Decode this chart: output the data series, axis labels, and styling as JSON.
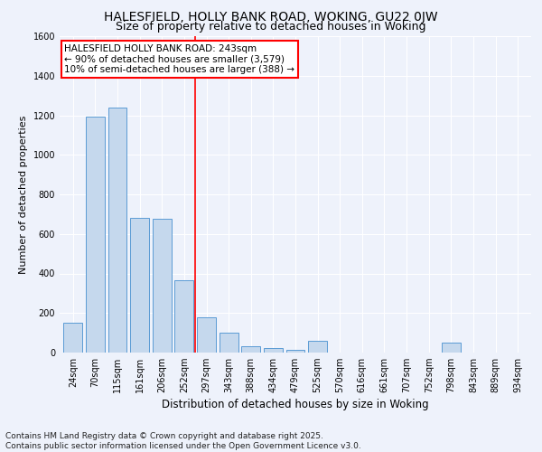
{
  "title1": "HALESFIELD, HOLLY BANK ROAD, WOKING, GU22 0JW",
  "title2": "Size of property relative to detached houses in Woking",
  "xlabel": "Distribution of detached houses by size in Woking",
  "ylabel": "Number of detached properties",
  "categories": [
    "24sqm",
    "70sqm",
    "115sqm",
    "161sqm",
    "206sqm",
    "252sqm",
    "297sqm",
    "343sqm",
    "388sqm",
    "434sqm",
    "479sqm",
    "525sqm",
    "570sqm",
    "616sqm",
    "661sqm",
    "707sqm",
    "752sqm",
    "798sqm",
    "843sqm",
    "889sqm",
    "934sqm"
  ],
  "values": [
    150,
    1195,
    1240,
    680,
    675,
    365,
    180,
    100,
    30,
    25,
    15,
    60,
    0,
    0,
    0,
    0,
    0,
    50,
    0,
    0,
    0
  ],
  "bar_color": "#c5d8ed",
  "bar_edge_color": "#5b9bd5",
  "vline_x_index": 5.5,
  "vline_color": "red",
  "annotation_text": "HALESFIELD HOLLY BANK ROAD: 243sqm\n← 90% of detached houses are smaller (3,579)\n10% of semi-detached houses are larger (388) →",
  "annotation_box_color": "white",
  "annotation_box_edge": "red",
  "ylim": [
    0,
    1600
  ],
  "yticks": [
    0,
    200,
    400,
    600,
    800,
    1000,
    1200,
    1400,
    1600
  ],
  "footnote": "Contains HM Land Registry data © Crown copyright and database right 2025.\nContains public sector information licensed under the Open Government Licence v3.0.",
  "bg_color": "#eef2fb",
  "grid_color": "white",
  "title1_fontsize": 10,
  "title2_fontsize": 9,
  "xlabel_fontsize": 8.5,
  "ylabel_fontsize": 8,
  "tick_fontsize": 7,
  "annotation_fontsize": 7.5,
  "footnote_fontsize": 6.5
}
